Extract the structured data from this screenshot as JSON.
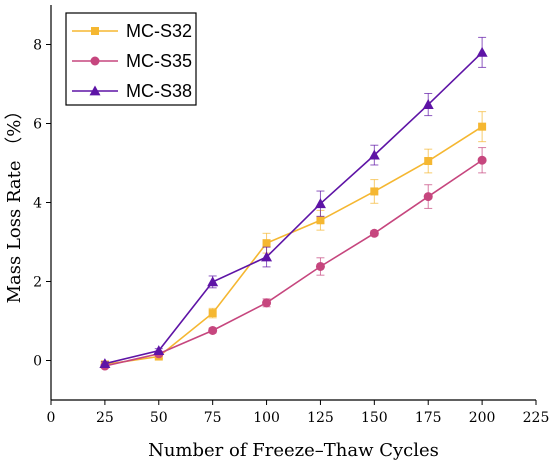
{
  "chart_data": {
    "type": "line",
    "xlabel": "Number of Freeze–Thaw Cycles",
    "ylabel": "Mass Loss Rate （%）",
    "xlim": [
      0,
      225
    ],
    "ylim": [
      -1,
      9
    ],
    "x_ticks": [
      0,
      25,
      50,
      75,
      100,
      125,
      150,
      175,
      200,
      225
    ],
    "y_ticks": [
      0,
      2,
      4,
      6,
      8
    ],
    "grid": false,
    "legend_position": "top-left",
    "x": [
      25,
      50,
      75,
      100,
      125,
      150,
      175,
      200
    ],
    "series": [
      {
        "name": "MC-S32",
        "color": "#f5b731",
        "marker": "square",
        "values": [
          -0.1,
          0.1,
          1.2,
          2.97,
          3.55,
          4.28,
          5.05,
          5.92
        ],
        "errors": [
          0.05,
          0.05,
          0.12,
          0.25,
          0.25,
          0.3,
          0.3,
          0.38
        ]
      },
      {
        "name": "MC-S35",
        "color": "#c6467e",
        "marker": "circle",
        "values": [
          -0.14,
          0.17,
          0.76,
          1.46,
          2.38,
          3.22,
          4.15,
          5.07
        ],
        "errors": [
          0.05,
          0.05,
          0.06,
          0.1,
          0.22,
          0.06,
          0.3,
          0.32
        ]
      },
      {
        "name": "MC-S38",
        "color": "#5e14a6",
        "marker": "triangle",
        "values": [
          -0.08,
          0.25,
          1.99,
          2.62,
          3.97,
          5.2,
          6.48,
          7.8
        ],
        "errors": [
          0.05,
          0.05,
          0.15,
          0.25,
          0.32,
          0.25,
          0.28,
          0.38
        ]
      }
    ]
  }
}
